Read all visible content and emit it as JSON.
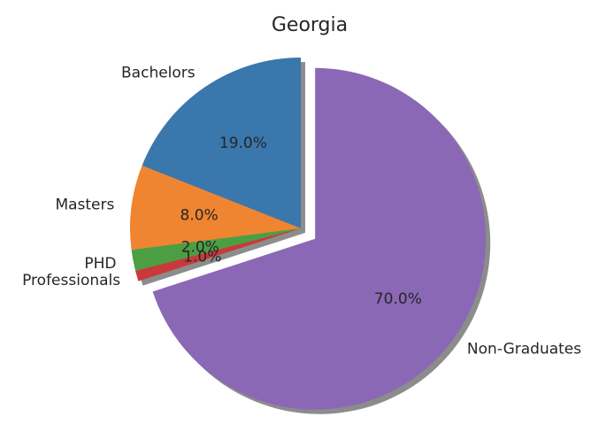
{
  "chart_data": {
    "type": "pie",
    "title": "Georgia",
    "slices": [
      {
        "label": "Bachelors",
        "value": 19.0,
        "pct_label": "19.0%",
        "color": "#3a77ad"
      },
      {
        "label": "Masters",
        "value": 8.0,
        "pct_label": "8.0%",
        "color": "#ef8531"
      },
      {
        "label": "PHD",
        "value": 2.0,
        "pct_label": "2.0%",
        "color": "#4c9e43"
      },
      {
        "label": "Professionals",
        "value": 1.0,
        "pct_label": "1.0%",
        "color": "#c9393a"
      },
      {
        "label": "Non-Graduates",
        "value": 70.0,
        "pct_label": "70.0%",
        "color": "#8a68b6"
      }
    ],
    "exploded": "Non-Graduates",
    "start_angle_deg": 90,
    "direction": "counterclockwise",
    "shadow": true
  }
}
